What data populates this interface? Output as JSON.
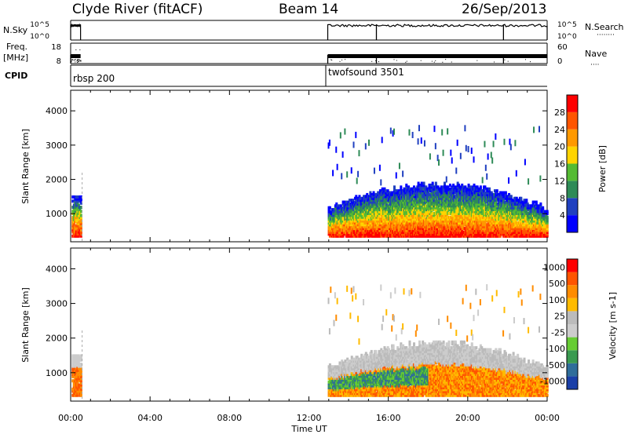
{
  "header": {
    "title": "Clyde River (fitACF)",
    "beam": "Beam 14",
    "date": "26/Sep/2013"
  },
  "colors": {
    "power_scale": [
      "#0000ff",
      "#2040c0",
      "#2e8b57",
      "#55bb33",
      "#ffd400",
      "#ff9900",
      "#ff5500",
      "#ff0000"
    ],
    "velocity_scale": [
      "#1a3fa8",
      "#2f6d9a",
      "#3a9a50",
      "#66cc33",
      "#cccccc",
      "#bbbbbb",
      "#ffbb00",
      "#ff8c00",
      "#ff5500",
      "#ff0000"
    ]
  },
  "chart_data": [
    {
      "type": "line",
      "panel": "N.Sky / N.Search",
      "ylabel_left": "N.Sky",
      "ylabel_right": "N.Search",
      "yticks_left": [
        "10^5",
        "10^0"
      ],
      "yticks_right": [
        "10^5",
        "10^0"
      ],
      "segments": [
        {
          "x_start": 0.0,
          "x_end": 0.5,
          "level": "high"
        },
        {
          "x_start": 12.95,
          "x_end": 24.0,
          "level": "high",
          "drops_at": [
            15.4,
            21.8
          ]
        }
      ]
    },
    {
      "type": "line",
      "panel": "Freq / Nave",
      "ylabel_left": "Freq.",
      "ylabel_left_unit": "[MHz]",
      "ylabel_right": "Nave",
      "yticks_left": [
        "18",
        "8"
      ],
      "yticks_right": [
        "60",
        "0"
      ],
      "segments": [
        {
          "x_start": 0.0,
          "x_end": 0.5,
          "freq_mhz": 10
        },
        {
          "x_start": 12.95,
          "x_end": 24.0,
          "freq_mhz": 10,
          "drops_at": [
            15.4,
            21.8
          ]
        }
      ]
    },
    {
      "type": "table",
      "panel": "CPID",
      "label": "CPID",
      "entries": [
        {
          "x": 0.0,
          "text": "rbsp 200"
        },
        {
          "x": 12.95,
          "text": "twofsound 3501"
        }
      ]
    },
    {
      "type": "heatmap",
      "panel": "Power",
      "ylabel": "Slant Range [km]",
      "yticks": [
        1000,
        2000,
        3000,
        4000
      ],
      "ylim": [
        180,
        4600
      ],
      "colorbar_label": "Power [dB]",
      "colorbar_ticks": [
        "4",
        "8",
        "12",
        "16",
        "20",
        "24",
        "28"
      ],
      "active_intervals": [
        [
          0.0,
          0.5
        ],
        [
          12.95,
          24.0
        ]
      ]
    },
    {
      "type": "heatmap",
      "panel": "Velocity",
      "ylabel": "Slant Range [km]",
      "yticks": [
        1000,
        2000,
        3000,
        4000
      ],
      "ylim": [
        180,
        4600
      ],
      "colorbar_label": "Velocity [m s-1]",
      "colorbar_ticks": [
        "1000",
        "500",
        "100",
        "25",
        "-25",
        "-100",
        "-500",
        "-1000"
      ],
      "active_intervals": [
        [
          0.0,
          0.5
        ],
        [
          12.95,
          24.0
        ]
      ],
      "xlabel": "Time UT",
      "xticks": [
        "00:00",
        "04:00",
        "08:00",
        "12:00",
        "16:00",
        "20:00",
        "00:00"
      ],
      "xlim": [
        0,
        24
      ]
    }
  ]
}
